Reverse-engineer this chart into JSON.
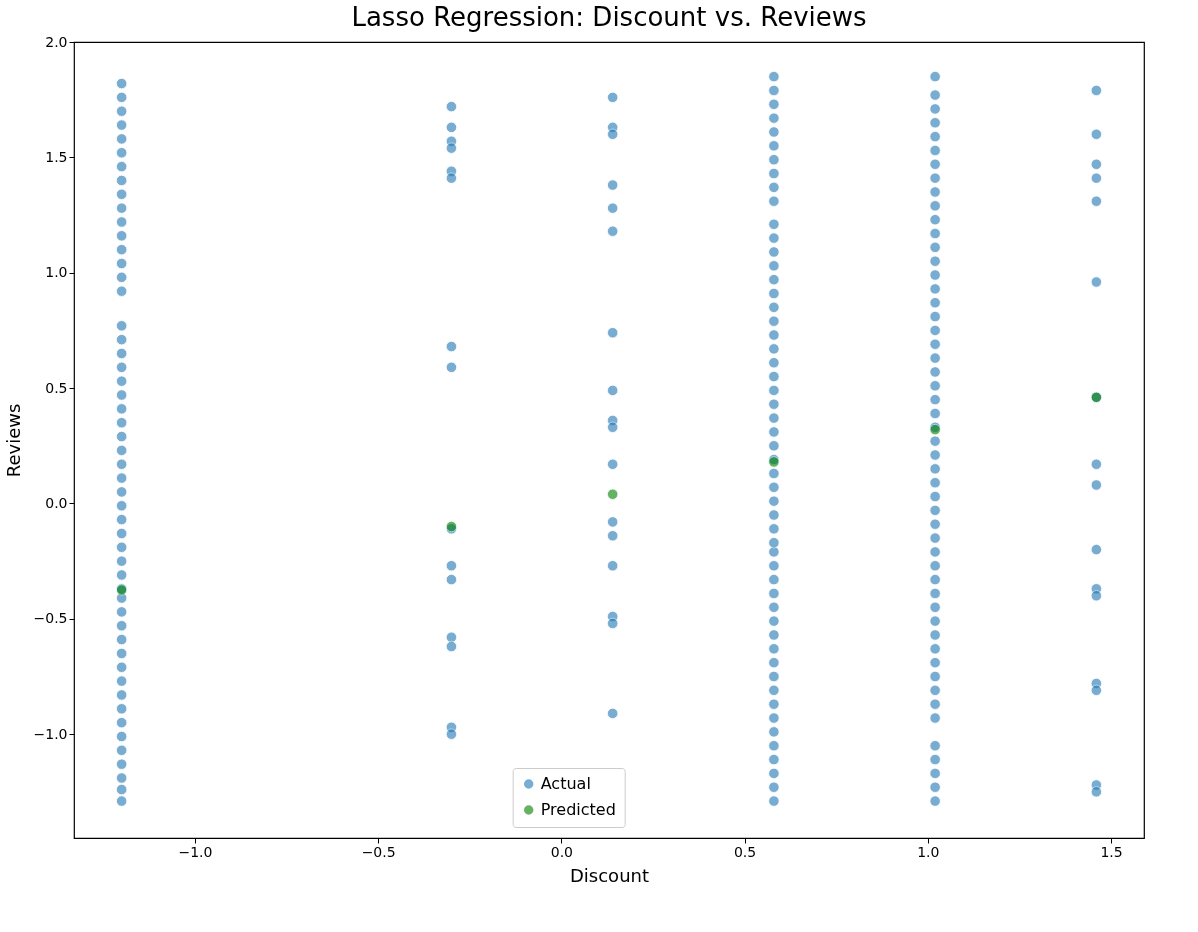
{
  "chart_data": {
    "type": "scatter",
    "title": "Lasso Regression: Discount vs. Reviews",
    "xlabel": "Discount",
    "ylabel": "Reviews",
    "xlim": [
      -1.33,
      1.59
    ],
    "ylim": [
      -1.45,
      2.0
    ],
    "xticks": [
      {
        "value": -1.0,
        "label": "−1.0"
      },
      {
        "value": -0.5,
        "label": "−0.5"
      },
      {
        "value": 0.0,
        "label": "0.0"
      },
      {
        "value": 0.5,
        "label": "0.5"
      },
      {
        "value": 1.0,
        "label": "1.0"
      },
      {
        "value": 1.5,
        "label": "1.5"
      }
    ],
    "yticks": [
      {
        "value": -1.0,
        "label": "−1.0"
      },
      {
        "value": -0.5,
        "label": "−0.5"
      },
      {
        "value": 0.0,
        "label": "0.0"
      },
      {
        "value": 0.5,
        "label": "0.5"
      },
      {
        "value": 1.0,
        "label": "1.0"
      },
      {
        "value": 1.5,
        "label": "1.5"
      },
      {
        "value": 2.0,
        "label": "2.0"
      }
    ],
    "grid": false,
    "legend": "bottom",
    "marker": "circle",
    "series": [
      {
        "name": "Actual",
        "color": "#1f77b4",
        "x": [
          -1.2,
          -1.2,
          -1.2,
          -1.2,
          -1.2,
          -1.2,
          -1.2,
          -1.2,
          -1.2,
          -1.2,
          -1.2,
          -1.2,
          -1.2,
          -1.2,
          -1.2,
          -1.2,
          -1.2,
          -1.2,
          -1.2,
          -1.2,
          -1.2,
          -1.2,
          -1.2,
          -1.2,
          -1.2,
          -1.2,
          -1.2,
          -1.2,
          -1.2,
          -1.2,
          -1.2,
          -1.2,
          -1.2,
          -1.2,
          -1.2,
          -1.2,
          -1.2,
          -1.2,
          -1.2,
          -1.2,
          -1.2,
          -1.2,
          -1.2,
          -1.2,
          -1.2,
          -1.2,
          -1.2,
          -1.2,
          -1.2,
          -1.2,
          -1.2,
          -1.2,
          -0.3,
          -0.3,
          -0.3,
          -0.3,
          -0.3,
          -0.3,
          -0.3,
          -0.3,
          -0.3,
          -0.3,
          -0.3,
          -0.3,
          -0.3,
          -0.3,
          -0.3,
          0.14,
          0.14,
          0.14,
          0.14,
          0.14,
          0.14,
          0.14,
          0.14,
          0.14,
          0.14,
          0.14,
          0.14,
          0.14,
          0.14,
          0.14,
          0.14,
          0.14,
          0.58,
          0.58,
          0.58,
          0.58,
          0.58,
          0.58,
          0.58,
          0.58,
          0.58,
          0.58,
          0.58,
          0.58,
          0.58,
          0.58,
          0.58,
          0.58,
          0.58,
          0.58,
          0.58,
          0.58,
          0.58,
          0.58,
          0.58,
          0.58,
          0.58,
          0.58,
          0.58,
          0.58,
          0.58,
          0.58,
          0.58,
          0.58,
          0.58,
          0.58,
          0.58,
          0.58,
          0.58,
          0.58,
          0.58,
          0.58,
          0.58,
          0.58,
          0.58,
          0.58,
          0.58,
          0.58,
          0.58,
          0.58,
          0.58,
          0.58,
          0.58,
          0.58,
          0.58,
          1.02,
          1.02,
          1.02,
          1.02,
          1.02,
          1.02,
          1.02,
          1.02,
          1.02,
          1.02,
          1.02,
          1.02,
          1.02,
          1.02,
          1.02,
          1.02,
          1.02,
          1.02,
          1.02,
          1.02,
          1.02,
          1.02,
          1.02,
          1.02,
          1.02,
          1.02,
          1.02,
          1.02,
          1.02,
          1.02,
          1.02,
          1.02,
          1.02,
          1.02,
          1.02,
          1.02,
          1.02,
          1.02,
          1.02,
          1.02,
          1.02,
          1.02,
          1.02,
          1.02,
          1.02,
          1.02,
          1.02,
          1.02,
          1.02,
          1.02,
          1.02,
          1.02,
          1.46,
          1.46,
          1.46,
          1.46,
          1.46,
          1.46,
          1.46,
          1.46,
          1.46,
          1.46,
          1.46,
          1.46,
          1.46,
          1.46,
          1.46,
          1.46
        ],
        "values": [
          -1.29,
          -1.24,
          -1.19,
          -1.13,
          -1.07,
          -1.01,
          -0.95,
          -0.89,
          -0.83,
          -0.77,
          -0.71,
          -0.65,
          -0.59,
          -0.53,
          -0.47,
          -0.41,
          -0.37,
          -0.31,
          -0.25,
          -0.19,
          -0.13,
          -0.07,
          -0.01,
          0.05,
          0.11,
          0.17,
          0.23,
          0.29,
          0.35,
          0.41,
          0.47,
          0.53,
          0.59,
          0.65,
          0.71,
          0.77,
          0.92,
          0.98,
          1.04,
          1.1,
          1.16,
          1.22,
          1.28,
          1.34,
          1.4,
          1.46,
          1.52,
          1.58,
          1.64,
          1.7,
          1.76,
          1.82,
          1.72,
          1.63,
          1.57,
          1.54,
          1.44,
          1.41,
          0.68,
          0.59,
          -0.11,
          -0.27,
          -0.33,
          -0.58,
          -0.62,
          -0.97,
          -1.0,
          1.76,
          1.63,
          1.6,
          1.38,
          1.28,
          1.18,
          0.74,
          0.49,
          0.36,
          0.33,
          0.17,
          -0.08,
          -0.14,
          -0.27,
          -0.49,
          -0.52,
          -0.91,
          -1.29,
          -1.23,
          -1.17,
          -1.11,
          -1.05,
          -0.99,
          -0.93,
          -0.87,
          -0.81,
          -0.75,
          -0.69,
          -0.63,
          -0.57,
          -0.51,
          -0.45,
          -0.39,
          -0.33,
          -0.27,
          -0.21,
          -0.17,
          -0.11,
          -0.05,
          0.01,
          0.07,
          0.13,
          0.19,
          0.25,
          0.31,
          0.37,
          0.43,
          0.49,
          0.55,
          0.61,
          0.67,
          0.73,
          0.79,
          0.85,
          0.91,
          0.97,
          1.03,
          1.09,
          1.15,
          1.21,
          1.31,
          1.37,
          1.43,
          1.49,
          1.55,
          1.61,
          1.67,
          1.73,
          1.79,
          1.85,
          -1.29,
          -1.23,
          -1.17,
          -1.11,
          -1.05,
          -0.93,
          -0.87,
          -0.81,
          -0.75,
          -0.69,
          -0.63,
          -0.57,
          -0.51,
          -0.45,
          -0.39,
          -0.33,
          -0.27,
          -0.21,
          -0.15,
          -0.09,
          -0.03,
          0.03,
          0.09,
          0.15,
          0.21,
          0.27,
          0.33,
          0.39,
          0.45,
          0.51,
          0.57,
          0.63,
          0.69,
          0.75,
          0.81,
          0.87,
          0.93,
          0.99,
          1.05,
          1.11,
          1.17,
          1.23,
          1.29,
          1.35,
          1.41,
          1.47,
          1.53,
          1.59,
          1.65,
          1.71,
          1.77,
          1.85,
          1.79,
          1.6,
          1.47,
          1.41,
          1.31,
          0.96,
          0.46,
          0.17,
          0.08,
          -0.2,
          -0.37,
          -0.4,
          -0.78,
          -0.81,
          -1.22,
          -1.25
        ]
      },
      {
        "name": "Predicted",
        "color": "#008000",
        "x": [
          -1.2,
          -0.3,
          0.14,
          0.58,
          1.02,
          1.46
        ],
        "values": [
          -0.375,
          -0.1,
          0.04,
          0.18,
          0.32,
          0.46
        ]
      }
    ]
  }
}
